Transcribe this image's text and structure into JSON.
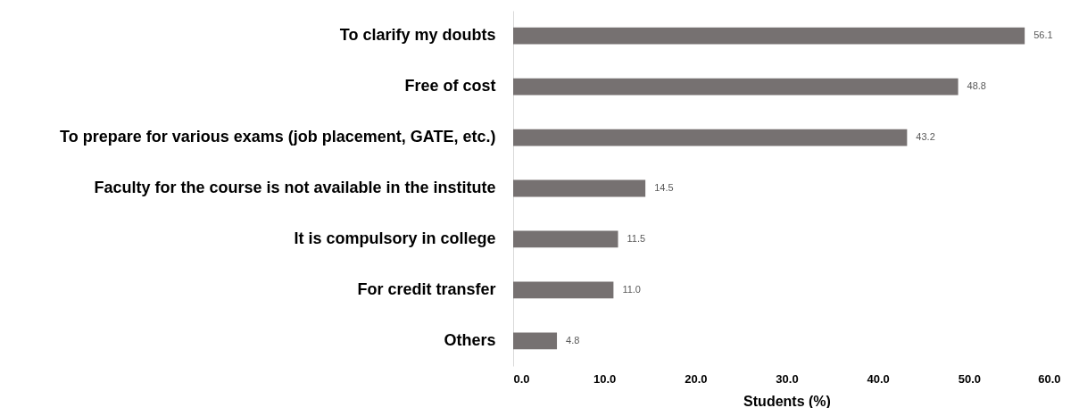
{
  "chart_data": {
    "type": "bar",
    "orientation": "horizontal",
    "xlabel": "Students (%)",
    "categories": [
      "To clarify my doubts",
      "Free of cost",
      "To prepare for various exams (job placement, GATE, etc.)",
      "Faculty for the course is not available in the institute",
      "It is compulsory in college",
      "For credit transfer",
      "Others"
    ],
    "values": [
      56.1,
      48.8,
      43.2,
      14.5,
      11.5,
      11.0,
      4.8
    ],
    "value_labels": [
      "56.1",
      "48.8",
      "43.2",
      "14.5",
      "11.5",
      "11.0",
      "4.8"
    ],
    "color": "#767171",
    "xlim": [
      0,
      60
    ],
    "xticks": [
      {
        "value": 0,
        "label": "0.0"
      },
      {
        "value": 10,
        "label": "10.0"
      },
      {
        "value": 20,
        "label": "20.0"
      },
      {
        "value": 30,
        "label": "30.0"
      },
      {
        "value": 40,
        "label": "40.0"
      },
      {
        "value": 50,
        "label": "50.0"
      },
      {
        "value": 60,
        "label": "60.0"
      }
    ],
    "grid": false
  }
}
